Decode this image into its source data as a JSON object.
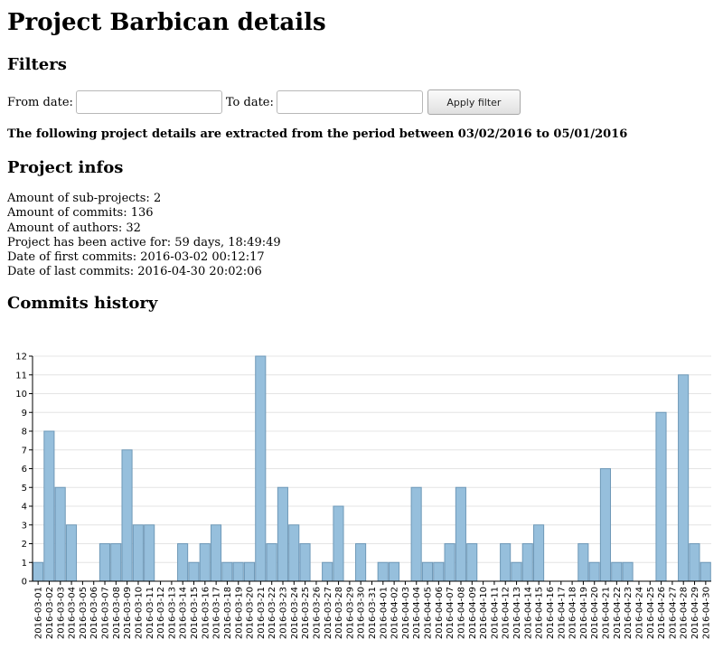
{
  "page": {
    "title": "Project Barbican details",
    "filters_heading": "Filters",
    "from_label": "From date:",
    "to_label": "To date:",
    "from_value": "",
    "to_value": "",
    "apply_label": "Apply filter",
    "period_text": "The following project details are extracted from the period between 03/02/2016 to 05/01/2016",
    "infos_heading": "Project infos",
    "infos": [
      "Amount of sub-projects: 2",
      "Amount of commits: 136",
      "Amount of authors: 32",
      "Project has been active for: 59 days, 18:49:49",
      "Date of first commits: 2016-03-02 00:12:17",
      "Date of last commits: 2016-04-30 20:02:06"
    ],
    "history_heading": "Commits history"
  },
  "chart_data": {
    "type": "bar",
    "ylim": [
      0,
      12
    ],
    "yticks": [
      0,
      1,
      2,
      3,
      4,
      5,
      6,
      7,
      8,
      9,
      10,
      11,
      12
    ],
    "grid": true,
    "bar_color": "#96bfdc",
    "categories": [
      "2016-03-01",
      "2016-03-02",
      "2016-03-03",
      "2016-03-04",
      "2016-03-05",
      "2016-03-06",
      "2016-03-07",
      "2016-03-08",
      "2016-03-09",
      "2016-03-10",
      "2016-03-11",
      "2016-03-12",
      "2016-03-13",
      "2016-03-14",
      "2016-03-15",
      "2016-03-16",
      "2016-03-17",
      "2016-03-18",
      "2016-03-19",
      "2016-03-20",
      "2016-03-21",
      "2016-03-22",
      "2016-03-23",
      "2016-03-24",
      "2016-03-25",
      "2016-03-26",
      "2016-03-27",
      "2016-03-28",
      "2016-03-29",
      "2016-03-30",
      "2016-03-31",
      "2016-04-01",
      "2016-04-02",
      "2016-04-03",
      "2016-04-04",
      "2016-04-05",
      "2016-04-06",
      "2016-04-07",
      "2016-04-08",
      "2016-04-09",
      "2016-04-10",
      "2016-04-11",
      "2016-04-12",
      "2016-04-13",
      "2016-04-14",
      "2016-04-15",
      "2016-04-16",
      "2016-04-17",
      "2016-04-18",
      "2016-04-19",
      "2016-04-20",
      "2016-04-21",
      "2016-04-22",
      "2016-04-23",
      "2016-04-24",
      "2016-04-25",
      "2016-04-26",
      "2016-04-27",
      "2016-04-28",
      "2016-04-29",
      "2016-04-30"
    ],
    "values": [
      1,
      8,
      5,
      3,
      0,
      0,
      2,
      2,
      7,
      3,
      3,
      0,
      0,
      2,
      1,
      2,
      3,
      1,
      1,
      1,
      12,
      2,
      5,
      3,
      2,
      0,
      1,
      4,
      0,
      2,
      0,
      1,
      1,
      0,
      5,
      1,
      1,
      2,
      5,
      2,
      0,
      0,
      2,
      1,
      2,
      3,
      0,
      0,
      0,
      2,
      1,
      6,
      1,
      1,
      0,
      0,
      9,
      0,
      11,
      2,
      1
    ]
  }
}
